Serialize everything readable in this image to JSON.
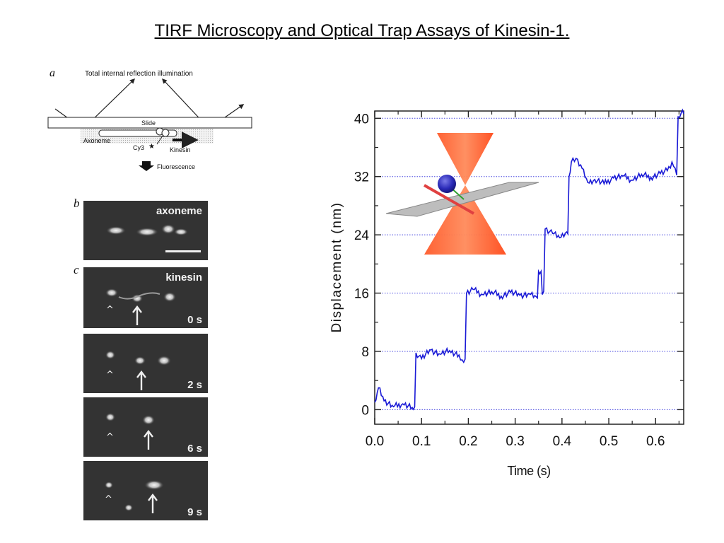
{
  "slide": {
    "title": "TIRF Microscopy and Optical Trap Assays of Kinesin-1."
  },
  "schematic": {
    "panel_letter": "a",
    "illumination_label": "Total internal reflection illumination",
    "slide_label": "Slide",
    "axoneme_label": "Axoneme",
    "cy3_label": "Cy3",
    "kinesin_label": "Kinesin",
    "fluorescence_label": "Fluorescence"
  },
  "micrographs": {
    "axoneme_panel": {
      "panel_letter": "b",
      "label": "axoneme"
    },
    "kinesin_panel": {
      "panel_letter": "c",
      "label": "kinesin"
    },
    "frames": [
      {
        "time": "0 s"
      },
      {
        "time": "2 s"
      },
      {
        "time": "6 s"
      },
      {
        "time": "9 s"
      }
    ]
  },
  "chart_data": {
    "type": "line",
    "title": "",
    "xlabel": "Time (s)",
    "ylabel": "Displacement (nm)",
    "xlim": [
      0.0,
      0.66
    ],
    "ylim": [
      -2,
      41
    ],
    "x_ticks": [
      "0.0",
      "0.1",
      "0.2",
      "0.3",
      "0.4",
      "0.5",
      "0.6"
    ],
    "y_ticks": [
      "0",
      "8",
      "16",
      "24",
      "32",
      "40"
    ],
    "grid": "horizontal dotted at y ticks",
    "line_color": "#1a1ad6",
    "grid_color": "#4a4ae0",
    "series": [
      {
        "x": [
          0.0,
          0.008,
          0.02,
          0.04,
          0.06,
          0.08,
          0.088,
          0.1,
          0.12,
          0.14,
          0.16,
          0.18,
          0.19,
          0.196,
          0.21,
          0.23,
          0.25,
          0.27,
          0.29,
          0.31,
          0.33,
          0.345,
          0.35,
          0.358,
          0.364,
          0.38,
          0.395,
          0.41,
          0.415,
          0.42,
          0.43,
          0.44,
          0.455,
          0.47,
          0.49,
          0.51,
          0.53,
          0.55,
          0.57,
          0.59,
          0.61,
          0.625,
          0.635,
          0.645,
          0.648,
          0.655,
          0.66
        ],
        "y": [
          1.0,
          3.0,
          1.2,
          0.4,
          0.8,
          0.3,
          7.8,
          7.0,
          8.2,
          7.6,
          8.1,
          7.5,
          6.5,
          16.0,
          16.5,
          15.8,
          16.2,
          15.6,
          16.1,
          15.7,
          15.9,
          15.5,
          19.0,
          15.8,
          24.8,
          24.2,
          23.6,
          24.4,
          32.0,
          34.0,
          34.5,
          33.6,
          31.2,
          31.6,
          31.0,
          31.8,
          32.1,
          31.5,
          32.3,
          31.9,
          32.4,
          32.8,
          34.0,
          32.2,
          40.2,
          40.8,
          40.6
        ]
      }
    ]
  }
}
